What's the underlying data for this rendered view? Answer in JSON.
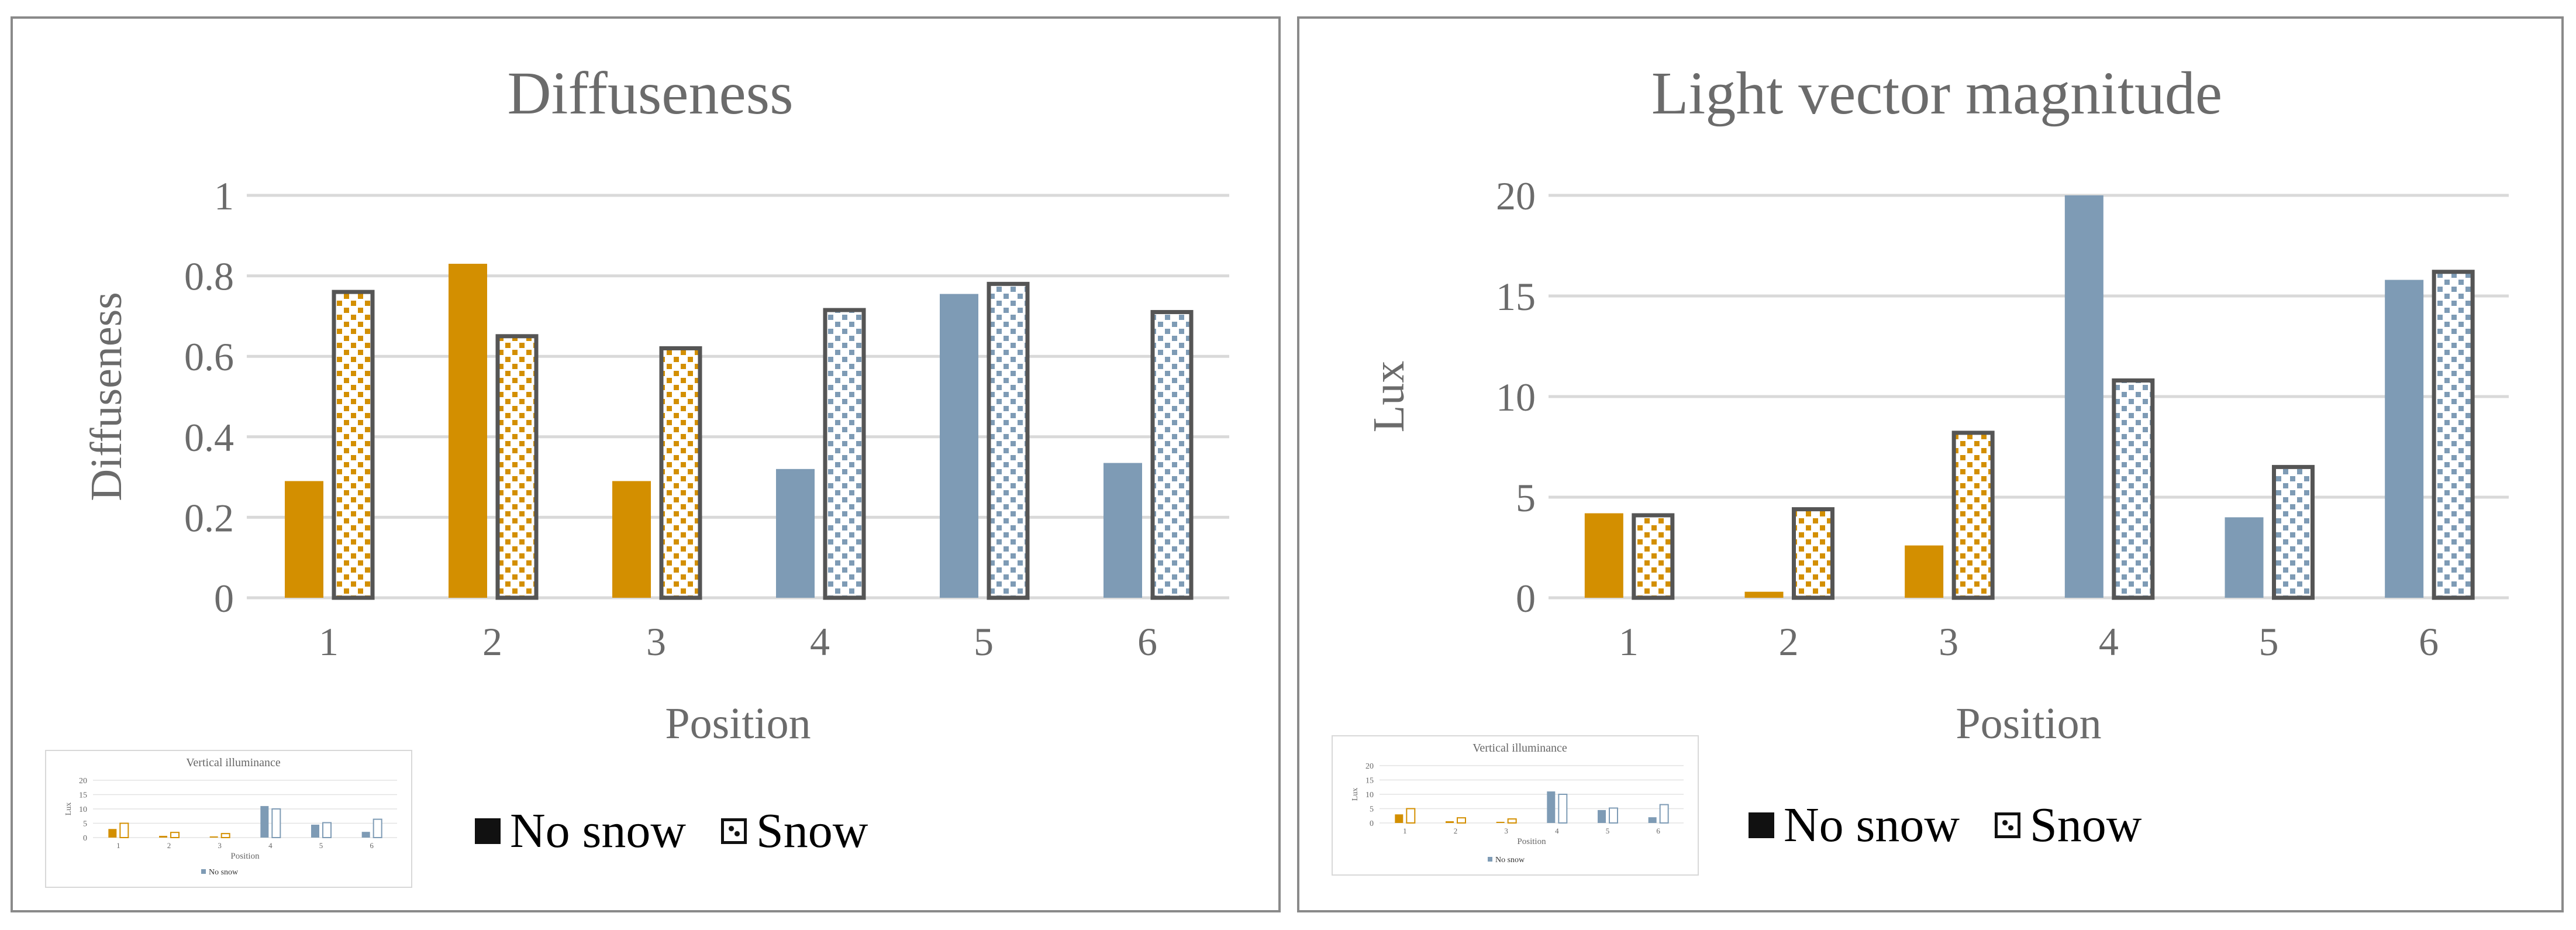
{
  "colors": {
    "no_snow_a": "#d38f00",
    "no_snow_b": "#7e9bb5",
    "snow_border": "#555555",
    "grid": "#d9d9d9",
    "text": "#6b6b6b"
  },
  "legend": {
    "no_snow": "No snow",
    "snow": "Snow"
  },
  "chart_data": [
    {
      "type": "bar",
      "title": "Diffuseness",
      "xlabel": "Position",
      "ylabel": "Diffuseness",
      "ylim": [
        0,
        1
      ],
      "yticks": [
        "0",
        "0.2",
        "0.4",
        "0.6",
        "0.8",
        "1"
      ],
      "categories": [
        "1",
        "2",
        "3",
        "4",
        "5",
        "6"
      ],
      "series": [
        {
          "name": "No snow",
          "values": [
            0.29,
            0.83,
            0.29,
            0.32,
            0.755,
            0.335
          ]
        },
        {
          "name": "Snow",
          "values": [
            0.76,
            0.65,
            0.62,
            0.715,
            0.78,
            0.71
          ]
        }
      ],
      "grid": true,
      "legend_position": "bottom"
    },
    {
      "type": "bar",
      "title": "Light vector magnitude",
      "xlabel": "Position",
      "ylabel": "Lux",
      "ylim": [
        0,
        20
      ],
      "yticks": [
        "0",
        "5",
        "10",
        "15",
        "20"
      ],
      "categories": [
        "1",
        "2",
        "3",
        "4",
        "5",
        "6"
      ],
      "series": [
        {
          "name": "No snow",
          "values": [
            4.2,
            0.3,
            2.6,
            20.0,
            4.0,
            15.8
          ]
        },
        {
          "name": "Snow",
          "values": [
            4.1,
            4.4,
            8.2,
            10.8,
            6.5,
            16.2
          ]
        }
      ],
      "grid": true,
      "legend_position": "bottom"
    }
  ],
  "thumbnail": {
    "title": "Vertical illuminance",
    "ylabel": "Lux",
    "xlabel": "Position",
    "legend": "No snow",
    "yticks": [
      "0",
      "5",
      "10",
      "15",
      "20"
    ],
    "categories": [
      "1",
      "2",
      "3",
      "4",
      "5",
      "6"
    ],
    "series": [
      {
        "name": "No snow",
        "values": [
          3.0,
          0.6,
          0.4,
          11.0,
          4.5,
          2.0
        ]
      },
      {
        "name": "Snow",
        "values": [
          5.0,
          1.8,
          1.4,
          10.0,
          5.2,
          6.4
        ]
      }
    ]
  }
}
